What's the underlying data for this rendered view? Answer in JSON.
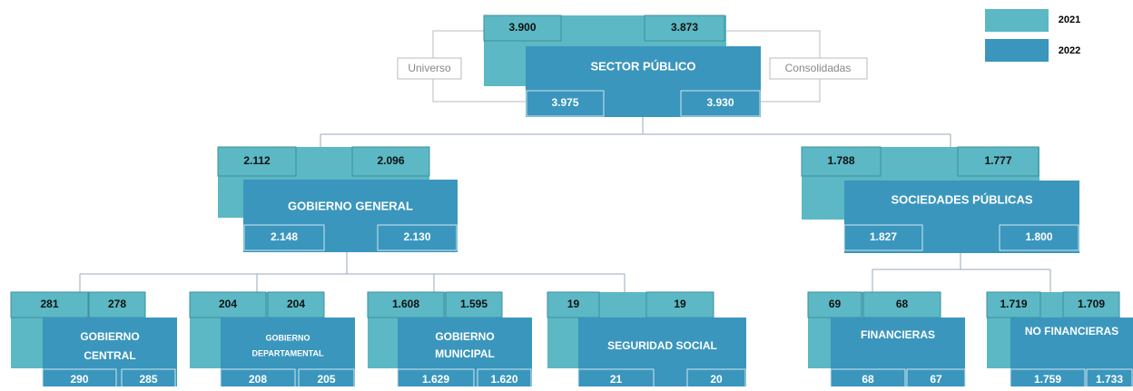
{
  "legend": {
    "items": [
      "2021",
      "2022"
    ]
  },
  "side_labels": {
    "left": "Universo",
    "right": "Consolidadas"
  },
  "nodes": [
    {
      "label": [
        "SECTOR PÚBLICO"
      ],
      "values_2021": [
        "3.900",
        "3.873"
      ],
      "values_2022": [
        "3.975",
        "3.930"
      ]
    },
    {
      "label": [
        "GOBIERNO GENERAL"
      ],
      "values_2021": [
        "2.112",
        "2.096"
      ],
      "values_2022": [
        "2.148",
        "2.130"
      ]
    },
    {
      "label": [
        "SOCIEDADES PÚBLICAS"
      ],
      "values_2021": [
        "1.788",
        "1.777"
      ],
      "values_2022": [
        "1.827",
        "1.800"
      ]
    },
    {
      "label": [
        "GOBIERNO",
        "CENTRAL"
      ],
      "values_2021": [
        "281",
        "278"
      ],
      "values_2022": [
        "290",
        "285"
      ]
    },
    {
      "label": [
        "GOBIERNO",
        "DEPARTAMENTAL"
      ],
      "values_2021": [
        "204",
        "204"
      ],
      "values_2022": [
        "208",
        "205"
      ]
    },
    {
      "label": [
        "GOBIERNO",
        "MUNICIPAL"
      ],
      "values_2021": [
        "1.608",
        "1.595"
      ],
      "values_2022": [
        "1.629",
        "1.620"
      ]
    },
    {
      "label": [
        "SEGURIDAD SOCIAL"
      ],
      "values_2021": [
        "19",
        "19"
      ],
      "values_2022": [
        "21",
        "20"
      ]
    },
    {
      "label": [
        "FINANCIERAS"
      ],
      "values_2021": [
        "69",
        "68"
      ],
      "values_2022": [
        "68",
        "67"
      ]
    },
    {
      "label": [
        "NO FINANCIERAS"
      ],
      "values_2021": [
        "1.719",
        "1.709"
      ],
      "values_2022": [
        "1.759",
        "1.733"
      ]
    }
  ]
}
